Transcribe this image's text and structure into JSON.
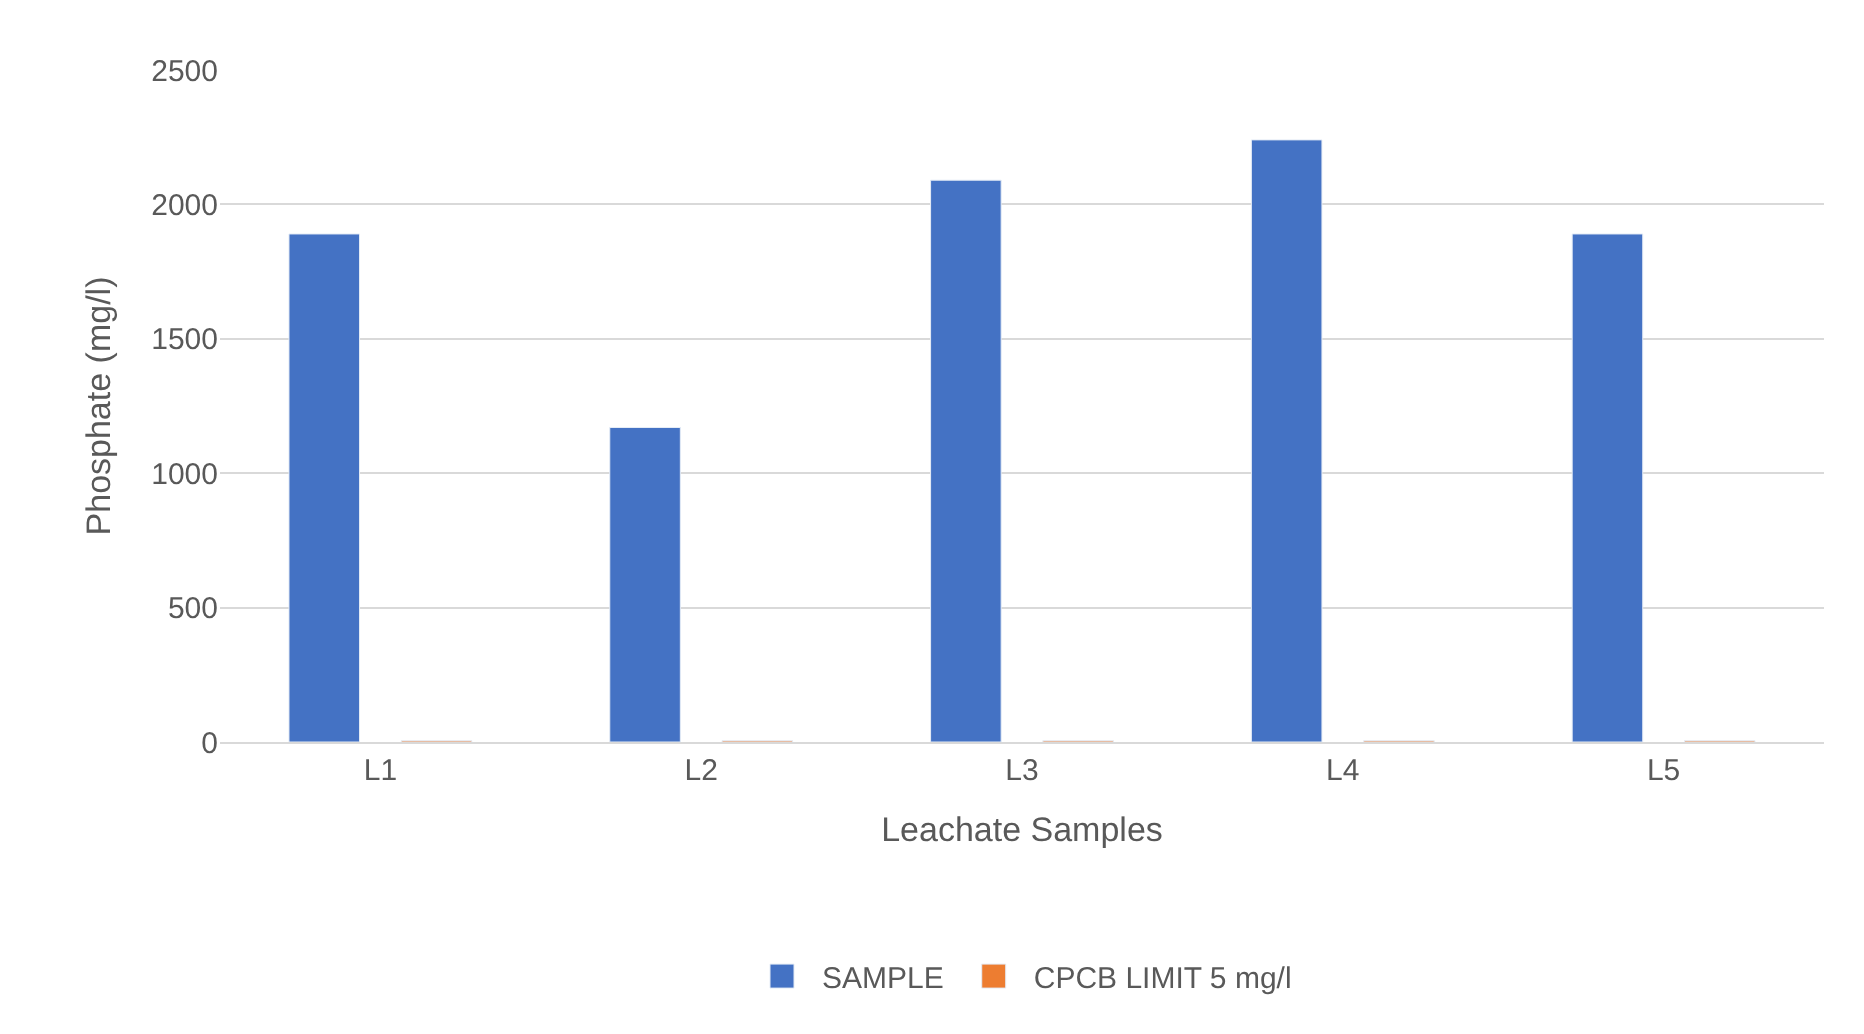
{
  "chart_data": {
    "type": "bar",
    "xlabel": "Leachate Samples",
    "ylabel": "Phosphate (mg/l)",
    "categories": [
      "L1",
      "L2",
      "L3",
      "L4",
      "L5"
    ],
    "series": [
      {
        "name": "SAMPLE",
        "color": "#4472c4",
        "values": [
          1890,
          1170,
          2090,
          2240,
          1890
        ]
      },
      {
        "name": "CPCB LIMIT 5 mg/l",
        "color": "#ed7d31",
        "values": [
          5,
          5,
          5,
          5,
          5
        ]
      }
    ],
    "ylim": [
      0,
      2500
    ],
    "yticks": [
      0,
      500,
      1000,
      1500,
      2000,
      2500
    ],
    "grid": "y",
    "legend": "bottom"
  }
}
